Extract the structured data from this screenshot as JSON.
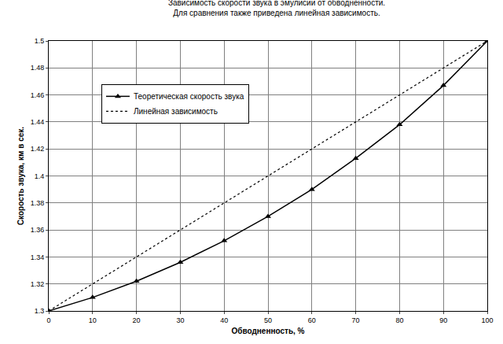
{
  "chart_data": {
    "type": "line",
    "title": "Зависимость скорости звука в эмулисии от обводненности.",
    "subtitle": "Для сравнения также приведена линейная зависимость.",
    "x_label": "Обводненность, %",
    "y_label": "Скорость звука, км в сек.",
    "series": [
      {
        "name": "Теоретическая скорость звука",
        "color": "#000000",
        "marker": "triangle",
        "line_style": "solid",
        "x": [
          0,
          10,
          20,
          30,
          40,
          50,
          60,
          70,
          80,
          90,
          100
        ],
        "values": [
          1.3,
          1.31,
          1.322,
          1.336,
          1.352,
          1.37,
          1.39,
          1.413,
          1.438,
          1.467,
          1.5
        ]
      },
      {
        "name": "Линейная зависимость",
        "color": "#000000",
        "marker": "none",
        "line_style": "dot",
        "x": [
          0,
          100
        ],
        "values": [
          1.3,
          1.5
        ]
      }
    ],
    "xlim": [
      0,
      100
    ],
    "xticks": [
      0,
      10,
      20,
      30,
      40,
      50,
      60,
      70,
      80,
      90,
      100
    ],
    "ylim": [
      1.3,
      1.5
    ],
    "yticks": [
      1.3,
      1.32,
      1.34,
      1.36,
      1.38,
      1.4,
      1.42,
      1.44,
      1.46,
      1.48,
      1.5
    ],
    "grid": true,
    "legend": "upper left"
  }
}
